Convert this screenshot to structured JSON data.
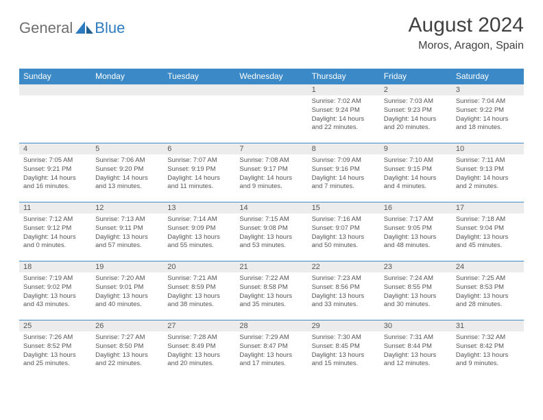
{
  "header": {
    "logo_general": "General",
    "logo_blue": "Blue",
    "month_title": "August 2024",
    "location": "Moros, Aragon, Spain"
  },
  "colors": {
    "header_bg": "#3b89c7",
    "header_text": "#ffffff",
    "daynum_bg": "#ececec",
    "row_border": "#3b89c7",
    "text": "#555555",
    "title_text": "#404040",
    "logo_gray": "#6e6e6e",
    "logo_blue": "#2d7bbf"
  },
  "weekdays": [
    "Sunday",
    "Monday",
    "Tuesday",
    "Wednesday",
    "Thursday",
    "Friday",
    "Saturday"
  ],
  "weeks": [
    [
      {
        "n": "",
        "c": ""
      },
      {
        "n": "",
        "c": ""
      },
      {
        "n": "",
        "c": ""
      },
      {
        "n": "",
        "c": ""
      },
      {
        "n": "1",
        "c": "Sunrise: 7:02 AM\nSunset: 9:24 PM\nDaylight: 14 hours and 22 minutes."
      },
      {
        "n": "2",
        "c": "Sunrise: 7:03 AM\nSunset: 9:23 PM\nDaylight: 14 hours and 20 minutes."
      },
      {
        "n": "3",
        "c": "Sunrise: 7:04 AM\nSunset: 9:22 PM\nDaylight: 14 hours and 18 minutes."
      }
    ],
    [
      {
        "n": "4",
        "c": "Sunrise: 7:05 AM\nSunset: 9:21 PM\nDaylight: 14 hours and 16 minutes."
      },
      {
        "n": "5",
        "c": "Sunrise: 7:06 AM\nSunset: 9:20 PM\nDaylight: 14 hours and 13 minutes."
      },
      {
        "n": "6",
        "c": "Sunrise: 7:07 AM\nSunset: 9:19 PM\nDaylight: 14 hours and 11 minutes."
      },
      {
        "n": "7",
        "c": "Sunrise: 7:08 AM\nSunset: 9:17 PM\nDaylight: 14 hours and 9 minutes."
      },
      {
        "n": "8",
        "c": "Sunrise: 7:09 AM\nSunset: 9:16 PM\nDaylight: 14 hours and 7 minutes."
      },
      {
        "n": "9",
        "c": "Sunrise: 7:10 AM\nSunset: 9:15 PM\nDaylight: 14 hours and 4 minutes."
      },
      {
        "n": "10",
        "c": "Sunrise: 7:11 AM\nSunset: 9:13 PM\nDaylight: 14 hours and 2 minutes."
      }
    ],
    [
      {
        "n": "11",
        "c": "Sunrise: 7:12 AM\nSunset: 9:12 PM\nDaylight: 14 hours and 0 minutes."
      },
      {
        "n": "12",
        "c": "Sunrise: 7:13 AM\nSunset: 9:11 PM\nDaylight: 13 hours and 57 minutes."
      },
      {
        "n": "13",
        "c": "Sunrise: 7:14 AM\nSunset: 9:09 PM\nDaylight: 13 hours and 55 minutes."
      },
      {
        "n": "14",
        "c": "Sunrise: 7:15 AM\nSunset: 9:08 PM\nDaylight: 13 hours and 53 minutes."
      },
      {
        "n": "15",
        "c": "Sunrise: 7:16 AM\nSunset: 9:07 PM\nDaylight: 13 hours and 50 minutes."
      },
      {
        "n": "16",
        "c": "Sunrise: 7:17 AM\nSunset: 9:05 PM\nDaylight: 13 hours and 48 minutes."
      },
      {
        "n": "17",
        "c": "Sunrise: 7:18 AM\nSunset: 9:04 PM\nDaylight: 13 hours and 45 minutes."
      }
    ],
    [
      {
        "n": "18",
        "c": "Sunrise: 7:19 AM\nSunset: 9:02 PM\nDaylight: 13 hours and 43 minutes."
      },
      {
        "n": "19",
        "c": "Sunrise: 7:20 AM\nSunset: 9:01 PM\nDaylight: 13 hours and 40 minutes."
      },
      {
        "n": "20",
        "c": "Sunrise: 7:21 AM\nSunset: 8:59 PM\nDaylight: 13 hours and 38 minutes."
      },
      {
        "n": "21",
        "c": "Sunrise: 7:22 AM\nSunset: 8:58 PM\nDaylight: 13 hours and 35 minutes."
      },
      {
        "n": "22",
        "c": "Sunrise: 7:23 AM\nSunset: 8:56 PM\nDaylight: 13 hours and 33 minutes."
      },
      {
        "n": "23",
        "c": "Sunrise: 7:24 AM\nSunset: 8:55 PM\nDaylight: 13 hours and 30 minutes."
      },
      {
        "n": "24",
        "c": "Sunrise: 7:25 AM\nSunset: 8:53 PM\nDaylight: 13 hours and 28 minutes."
      }
    ],
    [
      {
        "n": "25",
        "c": "Sunrise: 7:26 AM\nSunset: 8:52 PM\nDaylight: 13 hours and 25 minutes."
      },
      {
        "n": "26",
        "c": "Sunrise: 7:27 AM\nSunset: 8:50 PM\nDaylight: 13 hours and 22 minutes."
      },
      {
        "n": "27",
        "c": "Sunrise: 7:28 AM\nSunset: 8:49 PM\nDaylight: 13 hours and 20 minutes."
      },
      {
        "n": "28",
        "c": "Sunrise: 7:29 AM\nSunset: 8:47 PM\nDaylight: 13 hours and 17 minutes."
      },
      {
        "n": "29",
        "c": "Sunrise: 7:30 AM\nSunset: 8:45 PM\nDaylight: 13 hours and 15 minutes."
      },
      {
        "n": "30",
        "c": "Sunrise: 7:31 AM\nSunset: 8:44 PM\nDaylight: 13 hours and 12 minutes."
      },
      {
        "n": "31",
        "c": "Sunrise: 7:32 AM\nSunset: 8:42 PM\nDaylight: 13 hours and 9 minutes."
      }
    ]
  ]
}
